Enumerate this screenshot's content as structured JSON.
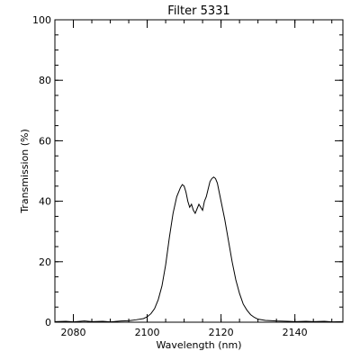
{
  "chart_data": {
    "type": "line",
    "title": "Filter 5331",
    "xlabel": "Wavelength (nm)",
    "ylabel": "Transmission (%)",
    "xlim": [
      2075,
      2153
    ],
    "ylim": [
      0,
      100
    ],
    "x_ticks": [
      2080,
      2100,
      2120,
      2140
    ],
    "y_ticks": [
      0,
      20,
      40,
      60,
      80,
      100
    ],
    "x_minor_step": 5,
    "y_minor_step": 5,
    "grid": false,
    "series": [
      {
        "x": [
          2075,
          2078,
          2080,
          2083,
          2085,
          2088,
          2090,
          2093,
          2095,
          2097,
          2099,
          2100,
          2101,
          2102,
          2103,
          2104,
          2105,
          2106,
          2107,
          2108,
          2109,
          2109.5,
          2110,
          2110.5,
          2111,
          2111.5,
          2112,
          2112.5,
          2113,
          2113.5,
          2114,
          2114.5,
          2115,
          2115.5,
          2116,
          2116.5,
          2117,
          2117.5,
          2118,
          2118.5,
          2119,
          2119.5,
          2120,
          2121,
          2122,
          2123,
          2124,
          2125,
          2126,
          2127,
          2128,
          2129,
          2130,
          2132,
          2135,
          2138,
          2140,
          2143,
          2145,
          2148,
          2150,
          2153
        ],
        "y": [
          0.2,
          0.3,
          0.1,
          0.4,
          0.2,
          0.3,
          0.1,
          0.4,
          0.5,
          0.8,
          1.2,
          1.8,
          2.8,
          4.5,
          7.5,
          12,
          19,
          28,
          36,
          41.5,
          44.5,
          45.5,
          45,
          43,
          40,
          38,
          39,
          37,
          36,
          37.5,
          39,
          38,
          37,
          40,
          41.5,
          44,
          46.5,
          47.5,
          48,
          47.5,
          46,
          43,
          40,
          34,
          27,
          20,
          14,
          9.5,
          6,
          4,
          2.5,
          1.6,
          1.0,
          0.6,
          0.4,
          0.3,
          0.2,
          0.3,
          0.2,
          0.3,
          0.1,
          0.2
        ]
      }
    ]
  }
}
